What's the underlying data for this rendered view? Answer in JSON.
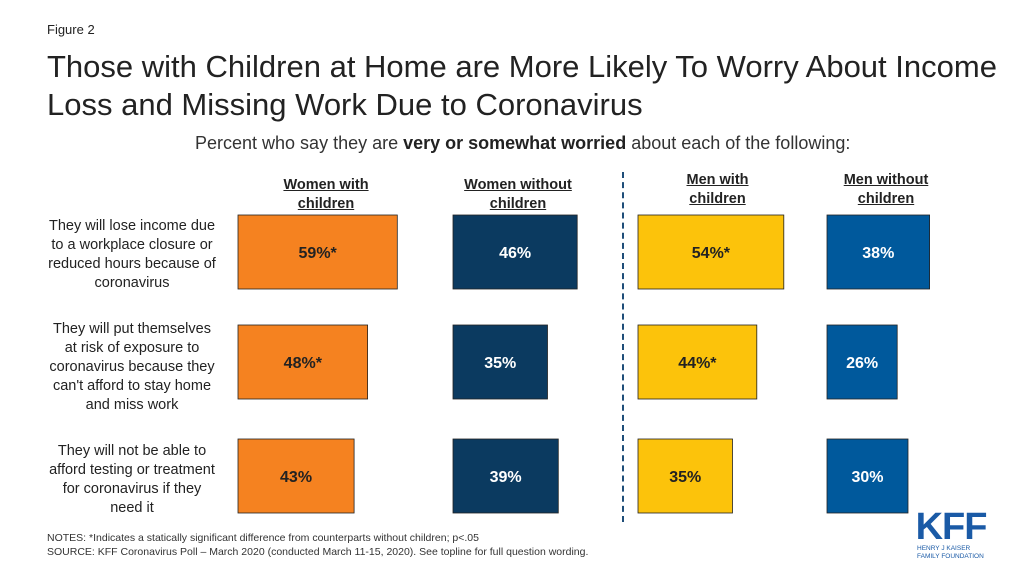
{
  "figure_label": "Figure 2",
  "title": "Those with Children at Home are More Likely To Worry About Income Loss and Missing Work Due to Coronavirus",
  "subtitle_prefix": "Percent who say they are ",
  "subtitle_bold": "very or somewhat worried",
  "subtitle_suffix": " about each of the following:",
  "notes_line1": "NOTES: *Indicates a statically significant difference from counterparts without children; p<.05",
  "notes_line2": "SOURCE: KFF Coronavirus  Poll – March 2020 (conducted March 11-15, 2020). See topline for full question wording.",
  "logo": {
    "mark": "KFF",
    "sub": "HENRY J KAISER\nFAMILY FOUNDATION"
  },
  "chart_data": {
    "type": "bar",
    "categories": [
      "They will lose income due to a workplace closure or reduced hours because of coronavirus",
      "They will put themselves at risk of exposure to coronavirus because they can't afford to stay home and miss work",
      "They will not be able to afford testing or treatment for coronavirus if they need it"
    ],
    "series": [
      {
        "name": "Women with children",
        "values": [
          59,
          48,
          43
        ],
        "labels": [
          "59%*",
          "48%*",
          "43%"
        ],
        "color": "#f58220"
      },
      {
        "name": "Women without children",
        "values": [
          46,
          35,
          39
        ],
        "labels": [
          "46%",
          "35%",
          "39%"
        ],
        "color": "#0b3a60"
      },
      {
        "name": "Men with children",
        "values": [
          54,
          44,
          35
        ],
        "labels": [
          "54%*",
          "44%*",
          "35%"
        ],
        "color": "#fcc30b"
      },
      {
        "name": "Men without children",
        "values": [
          38,
          26,
          30
        ],
        "labels": [
          "38%",
          "26%",
          "30%"
        ],
        "color": "#00599c"
      }
    ],
    "column_headers": [
      "Women with\nchildren",
      "Women without\nchildren",
      "Men with\nchildren",
      "Men without\nchildren"
    ],
    "row_labels": [
      "They will lose income due\nto a workplace closure or\nreduced hours because of\ncoronavirus",
      "They will put themselves\nat risk of exposure to\ncoronavirus because they\ncan't afford to stay home\nand miss work",
      "They will not be able to\nafford testing or treatment\nfor coronavirus if they\nneed it"
    ],
    "unit": "%",
    "ylim": [
      0,
      100
    ]
  }
}
